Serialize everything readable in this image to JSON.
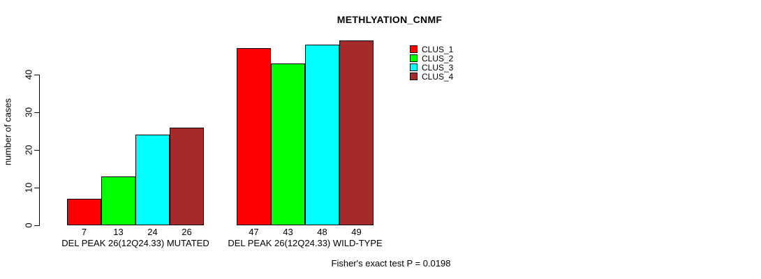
{
  "chart_data": {
    "type": "bar",
    "title": "METHLYATION_CNMF",
    "xlabel": "",
    "ylabel": "number of cases",
    "ylim": [
      0,
      40
    ],
    "yticks": [
      0,
      10,
      20,
      30,
      40
    ],
    "grid": false,
    "legend_position": "top-right-inside",
    "categories": [
      "DEL PEAK 26(12Q24.33) MUTATED",
      "DEL PEAK 26(12Q24.33) WILD-TYPE"
    ],
    "series": [
      {
        "name": "CLUS_1",
        "color": "#FF0000",
        "values": [
          7,
          47
        ]
      },
      {
        "name": "CLUS_2",
        "color": "#00FF00",
        "values": [
          13,
          43
        ]
      },
      {
        "name": "CLUS_3",
        "color": "#00FFFF",
        "values": [
          24,
          48
        ]
      },
      {
        "name": "CLUS_4",
        "color": "#A52A2A",
        "values": [
          26,
          49
        ]
      }
    ],
    "bar_value_labels_shown": true,
    "annotation": "Fisher's exact test P = 0.0198",
    "colors": {
      "background": "#FFFFFF",
      "axis": "#000000",
      "text": "#000000",
      "bar_border": "#000000"
    }
  }
}
